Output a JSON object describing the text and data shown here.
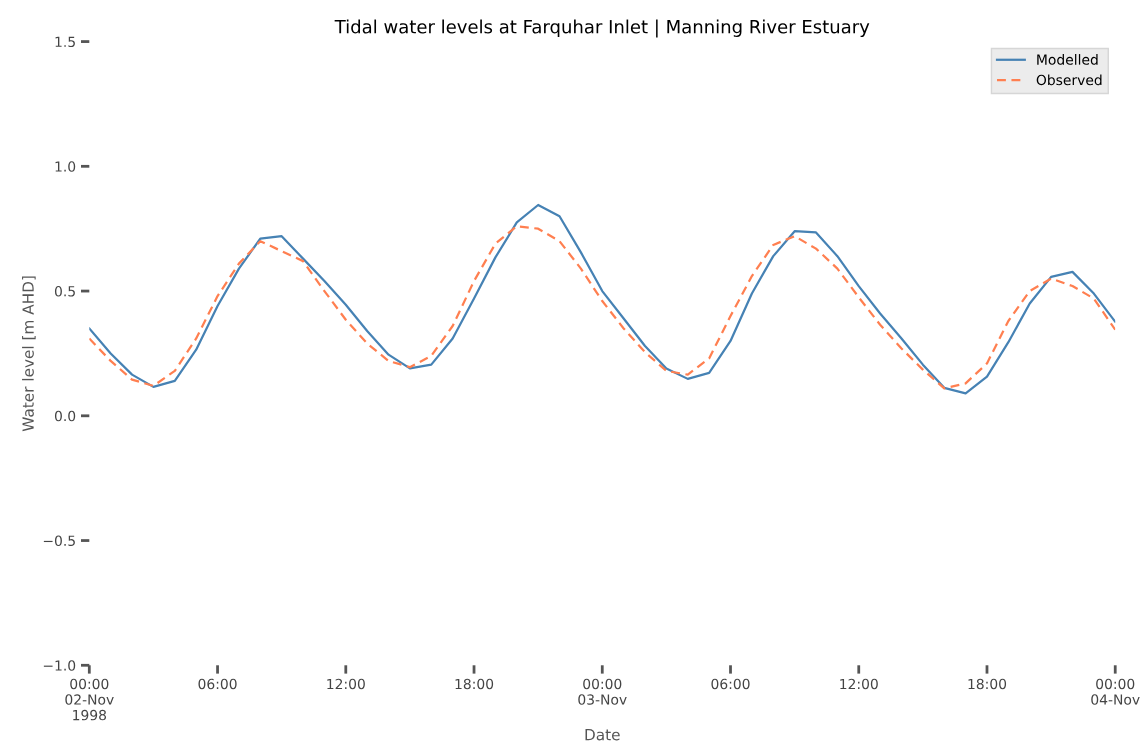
{
  "chart_data": {
    "type": "line",
    "title": "Tidal water levels at Farquhar Inlet | Manning River Estuary",
    "xlabel": "Date",
    "ylabel": "Water level [m AHD]",
    "x": [
      "1998-11-02T00:00",
      "1998-11-02T01:00",
      "1998-11-02T02:00",
      "1998-11-02T03:00",
      "1998-11-02T04:00",
      "1998-11-02T05:00",
      "1998-11-02T06:00",
      "1998-11-02T07:00",
      "1998-11-02T08:00",
      "1998-11-02T09:00",
      "1998-11-02T10:00",
      "1998-11-02T11:00",
      "1998-11-02T12:00",
      "1998-11-02T13:00",
      "1998-11-02T14:00",
      "1998-11-02T15:00",
      "1998-11-02T16:00",
      "1998-11-02T17:00",
      "1998-11-02T18:00",
      "1998-11-02T19:00",
      "1998-11-02T20:00",
      "1998-11-02T21:00",
      "1998-11-02T22:00",
      "1998-11-02T23:00",
      "1998-11-03T00:00",
      "1998-11-03T01:00",
      "1998-11-03T02:00",
      "1998-11-03T03:00",
      "1998-11-03T04:00",
      "1998-11-03T05:00",
      "1998-11-03T06:00",
      "1998-11-03T07:00",
      "1998-11-03T08:00",
      "1998-11-03T09:00",
      "1998-11-03T10:00",
      "1998-11-03T11:00",
      "1998-11-03T12:00",
      "1998-11-03T13:00",
      "1998-11-03T14:00",
      "1998-11-03T15:00",
      "1998-11-03T16:00",
      "1998-11-03T17:00",
      "1998-11-03T18:00",
      "1998-11-03T19:00",
      "1998-11-03T20:00",
      "1998-11-03T21:00",
      "1998-11-03T22:00",
      "1998-11-03T23:00",
      "1998-11-04T00:00"
    ],
    "series": [
      {
        "name": "Modelled",
        "color": "#4682b4",
        "line_style": "solid",
        "values": [
          0.35,
          0.25,
          0.165,
          0.116,
          0.14,
          0.265,
          0.44,
          0.59,
          0.71,
          0.72,
          0.63,
          0.54,
          0.445,
          0.34,
          0.245,
          0.19,
          0.205,
          0.31,
          0.47,
          0.635,
          0.775,
          0.845,
          0.8,
          0.655,
          0.5,
          0.39,
          0.28,
          0.19,
          0.148,
          0.172,
          0.3,
          0.49,
          0.64,
          0.74,
          0.735,
          0.64,
          0.52,
          0.41,
          0.31,
          0.205,
          0.112,
          0.09,
          0.157,
          0.295,
          0.45,
          0.557,
          0.577,
          0.49,
          0.377
        ]
      },
      {
        "name": "Observed",
        "color": "#ff7f50",
        "line_style": "dashed",
        "values": [
          0.31,
          0.22,
          0.145,
          0.12,
          0.18,
          0.31,
          0.48,
          0.61,
          0.7,
          0.66,
          0.62,
          0.5,
          0.385,
          0.29,
          0.22,
          0.195,
          0.24,
          0.36,
          0.54,
          0.69,
          0.76,
          0.75,
          0.7,
          0.59,
          0.46,
          0.35,
          0.255,
          0.18,
          0.165,
          0.23,
          0.4,
          0.56,
          0.685,
          0.72,
          0.67,
          0.59,
          0.475,
          0.365,
          0.27,
          0.185,
          0.11,
          0.13,
          0.21,
          0.38,
          0.5,
          0.55,
          0.52,
          0.47,
          0.345
        ]
      }
    ],
    "xlim": [
      "1998-11-02T00:00",
      "1998-11-04T00:00"
    ],
    "xticks": [
      {
        "value": "1998-11-02T00:00",
        "label": "00:00\n02-Nov\n1998"
      },
      {
        "value": "1998-11-02T06:00",
        "label": "06:00"
      },
      {
        "value": "1998-11-02T12:00",
        "label": "12:00"
      },
      {
        "value": "1998-11-02T18:00",
        "label": "18:00"
      },
      {
        "value": "1998-11-03T00:00",
        "label": "00:00\n03-Nov"
      },
      {
        "value": "1998-11-03T06:00",
        "label": "06:00"
      },
      {
        "value": "1998-11-03T12:00",
        "label": "12:00"
      },
      {
        "value": "1998-11-03T18:00",
        "label": "18:00"
      },
      {
        "value": "1998-11-04T00:00",
        "label": "00:00\n04-Nov"
      }
    ],
    "ylim": [
      -1.0,
      1.5
    ],
    "yticks": [
      {
        "value": -1.0,
        "label": "−1.0"
      },
      {
        "value": -0.5,
        "label": "−0.5"
      },
      {
        "value": 0.0,
        "label": "0.0"
      },
      {
        "value": 0.5,
        "label": "0.5"
      },
      {
        "value": 1.0,
        "label": "1.0"
      },
      {
        "value": 1.5,
        "label": "1.5"
      }
    ],
    "grid": false,
    "legend": "top right"
  }
}
